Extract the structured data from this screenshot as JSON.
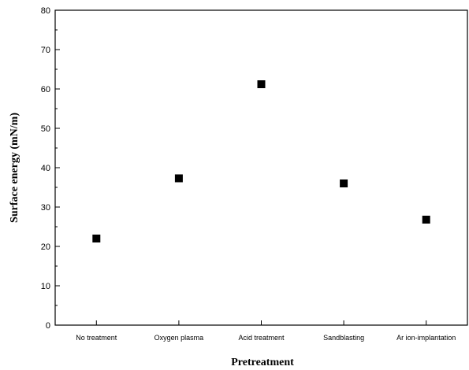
{
  "chart_data": {
    "type": "scatter",
    "title": "",
    "xlabel": "Pretreatment",
    "ylabel": "Surface energy (mN/m)",
    "categories": [
      "No treatment",
      "Oxygen plasma",
      "Acid treatment",
      "Sandblasting",
      "Ar ion-implantation"
    ],
    "values": [
      22,
      37.3,
      61.2,
      36,
      26.8
    ],
    "ylim": [
      0,
      80
    ],
    "yticks": [
      0,
      10,
      20,
      30,
      40,
      50,
      60,
      70,
      80
    ],
    "grid": false,
    "marker": "square",
    "marker_color": "#000000"
  }
}
